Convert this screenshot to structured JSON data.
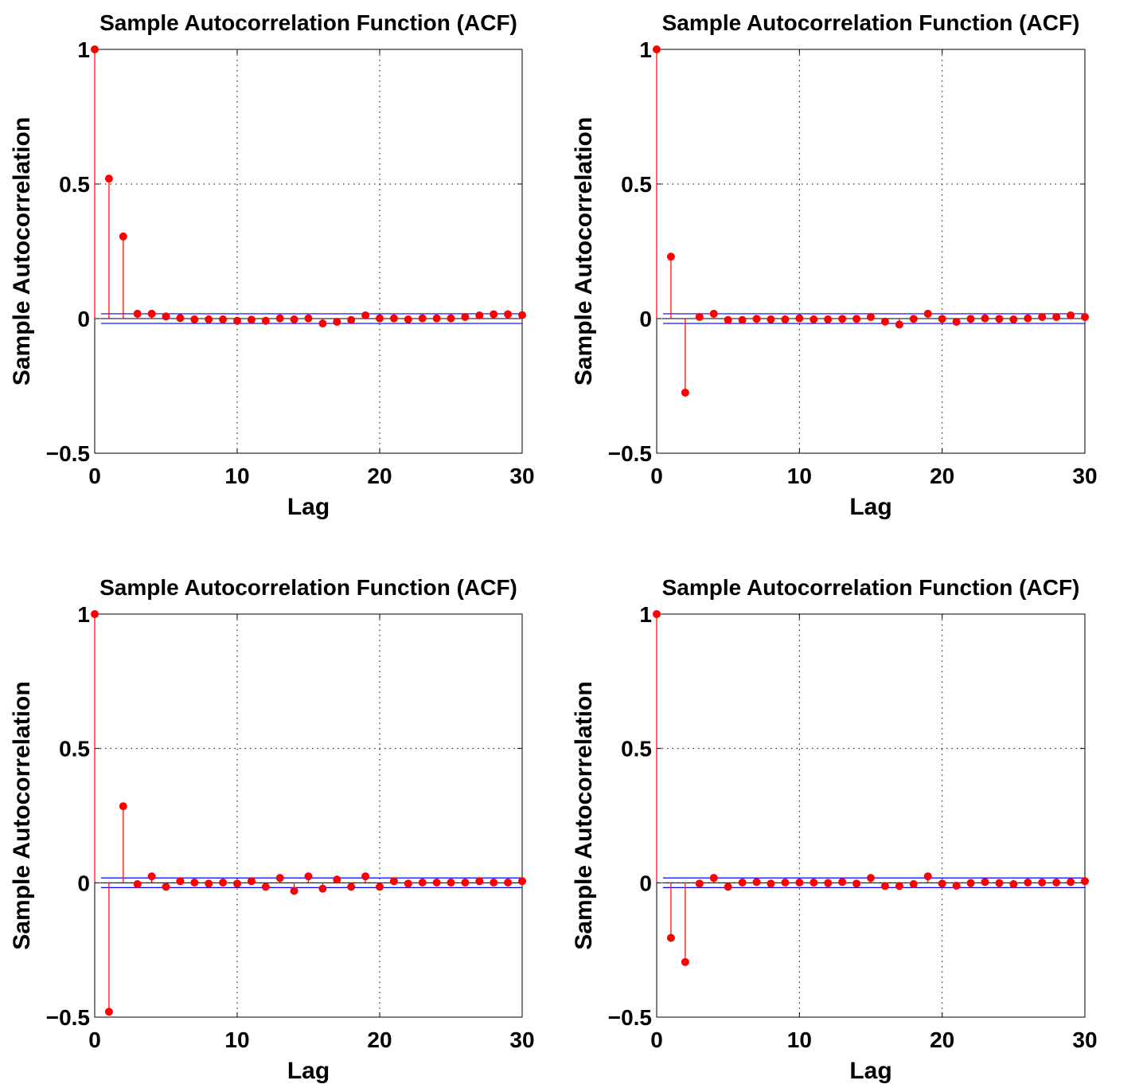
{
  "chart_data": [
    {
      "type": "stem",
      "title": "Sample Autocorrelation Function (ACF)",
      "xlabel": "Lag",
      "ylabel": "Sample Autocorrelation",
      "xlim": [
        0,
        30
      ],
      "ylim": [
        -0.5,
        1
      ],
      "xticks": [
        0,
        10,
        20,
        30
      ],
      "yticks": [
        -0.5,
        0,
        0.5,
        1
      ],
      "xtick_labels": [
        "0",
        "10",
        "20",
        "30"
      ],
      "ytick_labels": [
        "−0.5",
        "0",
        "0.5",
        "1"
      ],
      "grid": true,
      "confidence_bounds": [
        0.018,
        -0.018
      ],
      "lags": [
        0,
        1,
        2,
        3,
        4,
        5,
        6,
        7,
        8,
        9,
        10,
        11,
        12,
        13,
        14,
        15,
        16,
        17,
        18,
        19,
        20,
        21,
        22,
        23,
        24,
        25,
        26,
        27,
        28,
        29,
        30
      ],
      "values": [
        1,
        0.52,
        0.305,
        0.018,
        0.018,
        0.008,
        0.002,
        -0.003,
        -0.003,
        -0.003,
        -0.008,
        -0.004,
        -0.008,
        0.001,
        -0.003,
        0.001,
        -0.018,
        -0.012,
        -0.005,
        0.012,
        0.001,
        0.001,
        -0.003,
        0.001,
        0.001,
        0.001,
        0.006,
        0.012,
        0.016,
        0.016,
        0.013
      ]
    },
    {
      "type": "stem",
      "title": "Sample Autocorrelation Function (ACF)",
      "xlabel": "Lag",
      "ylabel": "Sample Autocorrelation",
      "xlim": [
        0,
        30
      ],
      "ylim": [
        -0.5,
        1
      ],
      "xticks": [
        0,
        10,
        20,
        30
      ],
      "yticks": [
        -0.5,
        0,
        0.5,
        1
      ],
      "xtick_labels": [
        "0",
        "10",
        "20",
        "30"
      ],
      "ytick_labels": [
        "−0.5",
        "0",
        "0.5",
        "1"
      ],
      "grid": true,
      "confidence_bounds": [
        0.018,
        -0.018
      ],
      "lags": [
        0,
        1,
        2,
        3,
        4,
        5,
        6,
        7,
        8,
        9,
        10,
        11,
        12,
        13,
        14,
        15,
        16,
        17,
        18,
        19,
        20,
        21,
        22,
        23,
        24,
        25,
        26,
        27,
        28,
        29,
        30
      ],
      "values": [
        1,
        0.23,
        -0.275,
        0.006,
        0.018,
        -0.005,
        -0.005,
        -0.001,
        -0.003,
        -0.003,
        0.001,
        -0.003,
        -0.003,
        -0.001,
        -0.001,
        0.006,
        -0.011,
        -0.022,
        -0.001,
        0.018,
        -0.001,
        -0.012,
        -0.001,
        0.001,
        -0.001,
        -0.003,
        0.001,
        0.006,
        0.006,
        0.012,
        0.006
      ]
    },
    {
      "type": "stem",
      "title": "Sample Autocorrelation Function (ACF)",
      "xlabel": "Lag",
      "ylabel": "Sample Autocorrelation",
      "xlim": [
        0,
        30
      ],
      "ylim": [
        -0.5,
        1
      ],
      "xticks": [
        0,
        10,
        20,
        30
      ],
      "yticks": [
        -0.5,
        0,
        0.5,
        1
      ],
      "xtick_labels": [
        "0",
        "10",
        "20",
        "30"
      ],
      "ytick_labels": [
        "−0.5",
        "0",
        "0.5",
        "1"
      ],
      "grid": true,
      "confidence_bounds": [
        0.018,
        -0.018
      ],
      "lags": [
        0,
        1,
        2,
        3,
        4,
        5,
        6,
        7,
        8,
        9,
        10,
        11,
        12,
        13,
        14,
        15,
        16,
        17,
        18,
        19,
        20,
        21,
        22,
        23,
        24,
        25,
        26,
        27,
        28,
        29,
        30
      ],
      "values": [
        1,
        -0.48,
        0.285,
        -0.005,
        0.024,
        -0.015,
        0.006,
        0.001,
        -0.003,
        0.001,
        -0.003,
        0.006,
        -0.015,
        0.018,
        -0.03,
        0.024,
        -0.022,
        0.012,
        -0.015,
        0.024,
        -0.015,
        0.006,
        -0.003,
        0.001,
        0.001,
        0.001,
        0.001,
        0.006,
        0.001,
        0.001,
        0.006
      ]
    },
    {
      "type": "stem",
      "title": "Sample Autocorrelation Function (ACF)",
      "xlabel": "Lag",
      "ylabel": "Sample Autocorrelation",
      "xlim": [
        0,
        30
      ],
      "ylim": [
        -0.5,
        1
      ],
      "xticks": [
        0,
        10,
        20,
        30
      ],
      "yticks": [
        -0.5,
        0,
        0.5,
        1
      ],
      "xtick_labels": [
        "0",
        "10",
        "20",
        "30"
      ],
      "ytick_labels": [
        "−0.5",
        "0",
        "0.5",
        "1"
      ],
      "grid": true,
      "confidence_bounds": [
        0.018,
        -0.018
      ],
      "lags": [
        0,
        1,
        2,
        3,
        4,
        5,
        6,
        7,
        8,
        9,
        10,
        11,
        12,
        13,
        14,
        15,
        16,
        17,
        18,
        19,
        20,
        21,
        22,
        23,
        24,
        25,
        26,
        27,
        28,
        29,
        30
      ],
      "values": [
        1,
        -0.205,
        -0.295,
        -0.003,
        0.018,
        -0.015,
        0.001,
        0.003,
        -0.003,
        0.001,
        0.001,
        0.001,
        -0.001,
        0.003,
        -0.003,
        0.018,
        -0.012,
        -0.012,
        -0.005,
        0.024,
        -0.003,
        -0.011,
        -0.001,
        0.003,
        -0.001,
        -0.005,
        0.001,
        0.001,
        0.001,
        0.003,
        0.006
      ]
    }
  ],
  "colors": {
    "stem": "#ff0000",
    "marker": "#ff0000",
    "bounds": "#0000ff",
    "zero_line": "#000000",
    "grid": "#000000",
    "axes": "#000000"
  }
}
